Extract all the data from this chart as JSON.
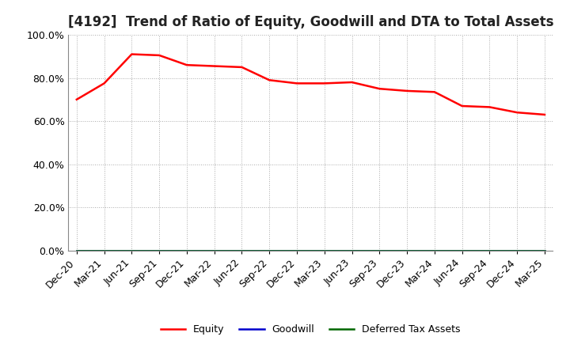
{
  "title": "[4192]  Trend of Ratio of Equity, Goodwill and DTA to Total Assets",
  "x_labels": [
    "Dec-20",
    "Mar-21",
    "Jun-21",
    "Sep-21",
    "Dec-21",
    "Mar-22",
    "Jun-22",
    "Sep-22",
    "Dec-22",
    "Mar-23",
    "Jun-23",
    "Sep-23",
    "Dec-23",
    "Mar-24",
    "Jun-24",
    "Sep-24",
    "Dec-24",
    "Mar-25"
  ],
  "equity": [
    0.7,
    0.775,
    0.91,
    0.905,
    0.86,
    0.855,
    0.85,
    0.79,
    0.775,
    0.775,
    0.78,
    0.75,
    0.74,
    0.735,
    0.67,
    0.665,
    0.64,
    0.63
  ],
  "goodwill": [
    0.0,
    0.0,
    0.0,
    0.0,
    0.0,
    0.0,
    0.0,
    0.0,
    0.0,
    0.0,
    0.0,
    0.0,
    0.0,
    0.0,
    0.0,
    0.0,
    0.0,
    0.0
  ],
  "dta": [
    0.0,
    0.0,
    0.0,
    0.0,
    0.0,
    0.0,
    0.0,
    0.0,
    0.0,
    0.0,
    0.0,
    0.0,
    0.0,
    0.0,
    0.0,
    0.0,
    0.0,
    0.0
  ],
  "equity_color": "#FF0000",
  "goodwill_color": "#0000CC",
  "dta_color": "#006600",
  "ylim": [
    0.0,
    1.0
  ],
  "yticks": [
    0.0,
    0.2,
    0.4,
    0.6,
    0.8,
    1.0
  ],
  "background_color": "#FFFFFF",
  "grid_color": "#AAAAAA",
  "legend_entries": [
    "Equity",
    "Goodwill",
    "Deferred Tax Assets"
  ],
  "title_fontsize": 12,
  "tick_fontsize": 9,
  "legend_fontsize": 9
}
